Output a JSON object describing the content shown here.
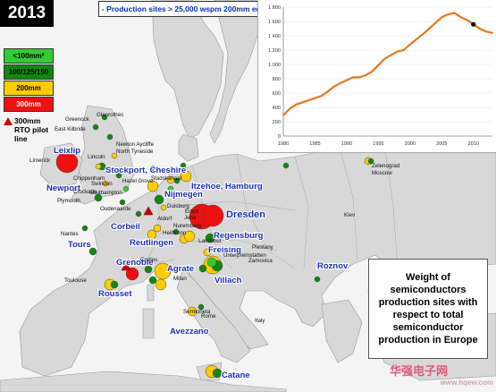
{
  "year": "2013",
  "header": "- Production sites > 25,000 wspm 200mm eq.",
  "legend": [
    {
      "label": "<100mm²",
      "color": "#33cc33",
      "text_color": "#000"
    },
    {
      "label": "100/125/150",
      "color": "#118811",
      "text_color": "#000"
    },
    {
      "label": "200mm",
      "color": "#ffcc00",
      "text_color": "#000"
    },
    {
      "label": "300mm",
      "color": "#ee1111",
      "text_color": "#fff"
    }
  ],
  "rto_label": "300mm RTO pilot line",
  "weight_box": "Weight of semiconductors production sites with respect to total semiconductor production in Europe",
  "watermark": {
    "cn": "华强电子网",
    "url": "www.hqew.com"
  },
  "big_labels": [
    {
      "text": "Leixlip"
    },
    {
      "text": "Newport"
    },
    {
      "text": "Stockport, Cheshire"
    },
    {
      "text": "Itzehoe, Hamburg"
    },
    {
      "text": "Nijmegen"
    },
    {
      "text": "Dresden"
    },
    {
      "text": "Corbeil"
    },
    {
      "text": "Tours"
    },
    {
      "text": "Reutlingen"
    },
    {
      "text": "Regensburg"
    },
    {
      "text": "Freising"
    },
    {
      "text": "Grenoble"
    },
    {
      "text": "Agrate"
    },
    {
      "text": "Villach"
    },
    {
      "text": "Rousset"
    },
    {
      "text": "Avezzano"
    },
    {
      "text": "Catane"
    },
    {
      "text": "Roznov"
    }
  ],
  "small_labels": [
    {
      "text": "Greenock"
    },
    {
      "text": "Glenrothes"
    },
    {
      "text": "East Kilbride"
    },
    {
      "text": "Newton Aycliffe"
    },
    {
      "text": "North Tyneside"
    },
    {
      "text": "Limerick"
    },
    {
      "text": "Lincoln"
    },
    {
      "text": "Chippenham"
    },
    {
      "text": "Swindon"
    },
    {
      "text": "Crockade"
    },
    {
      "text": "Hazel Grove"
    },
    {
      "text": "Plymouth"
    },
    {
      "text": "Southampton"
    },
    {
      "text": "Oudenaarde"
    },
    {
      "text": "Stadskanaal"
    },
    {
      "text": "Duisburg"
    },
    {
      "text": "Aldorf"
    },
    {
      "text": "Nuremberg"
    },
    {
      "text": "Heilbronn"
    },
    {
      "text": "Landshut"
    },
    {
      "text": "Erfurt"
    },
    {
      "text": "Kiev"
    },
    {
      "text": "Nantes"
    },
    {
      "text": "Toulouse"
    },
    {
      "text": "Zelenograd\nMoscow"
    },
    {
      "text": "Sermoneta"
    },
    {
      "text": "Italy"
    },
    {
      "text": "Zamovica"
    },
    {
      "text": "Piestany"
    },
    {
      "text": "Jena"
    },
    {
      "text": "Unterpremstatten"
    },
    {
      "text": "Crolles"
    },
    {
      "text": "Milan"
    },
    {
      "text": "Rome"
    }
  ],
  "chart_data": {
    "type": "line",
    "title": "",
    "xlabel": "",
    "ylabel": "",
    "xlim": [
      1980,
      2013
    ],
    "ylim": [
      0,
      1800
    ],
    "x_ticks": [
      1980,
      1985,
      1990,
      1995,
      2000,
      2005,
      2010
    ],
    "y_ticks": [
      0,
      200,
      400,
      600,
      800,
      1000,
      1200,
      1400,
      1600,
      1800
    ],
    "y_tick_labels": [
      "0",
      "200",
      "400",
      "600",
      "800",
      "1 000",
      "1 200",
      "1 400",
      "1 600",
      "1 800"
    ],
    "series": [
      {
        "color": "#e87722",
        "x": [
          1980,
          1981,
          1982,
          1983,
          1984,
          1985,
          1986,
          1987,
          1988,
          1989,
          1990,
          1991,
          1992,
          1993,
          1994,
          1995,
          1996,
          1997,
          1998,
          1999,
          2000,
          2001,
          2002,
          2003,
          2004,
          2005,
          2006,
          2007,
          2008,
          2009,
          2010,
          2011,
          2012,
          2013
        ],
        "y": [
          290,
          380,
          440,
          470,
          500,
          530,
          560,
          620,
          690,
          740,
          780,
          820,
          820,
          850,
          900,
          990,
          1080,
          1130,
          1180,
          1200,
          1280,
          1350,
          1420,
          1500,
          1580,
          1660,
          1700,
          1720,
          1660,
          1620,
          1560,
          1500,
          1460,
          1440
        ]
      }
    ],
    "highlight_point": {
      "x": 2010,
      "y": 1560
    }
  }
}
